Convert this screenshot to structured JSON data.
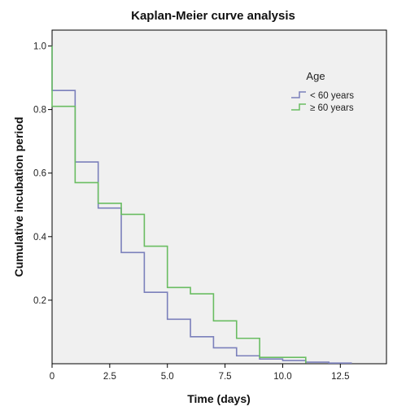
{
  "chart_data": {
    "type": "line",
    "step": true,
    "title": "Kaplan-Meier curve analysis",
    "xlabel": "Time (days)",
    "ylabel": "Cumulative incubation period",
    "xlim": [
      0,
      14.5
    ],
    "ylim": [
      0,
      1.05
    ],
    "x_ticks": [
      0,
      2.5,
      5.0,
      7.5,
      10.0,
      12.5
    ],
    "x_tick_labels": [
      "0",
      "2.5",
      "5.0",
      "7.5",
      "10.0",
      "12.5"
    ],
    "y_ticks": [
      0.2,
      0.4,
      0.6,
      0.8,
      1.0
    ],
    "y_tick_labels": [
      "0.2",
      "0.4",
      "0.6",
      "0.8",
      "1.0"
    ],
    "grid": false,
    "legend": {
      "title": "Age",
      "position": "top-right",
      "entries": [
        "< 60 years",
        "≥ 60 years"
      ]
    },
    "series": [
      {
        "name": "< 60 years",
        "color": "#7b80bb",
        "x": [
          0,
          1,
          2,
          3,
          4,
          5,
          6,
          7,
          8,
          9,
          10,
          11,
          12,
          13
        ],
        "y": [
          0.86,
          0.635,
          0.49,
          0.35,
          0.225,
          0.14,
          0.085,
          0.05,
          0.025,
          0.015,
          0.01,
          0.005,
          0.002,
          0.002
        ]
      },
      {
        "name": "≥ 60 years",
        "color": "#6abd62",
        "x": [
          0,
          1,
          2,
          3,
          4,
          5,
          6,
          7,
          8,
          9,
          10,
          11
        ],
        "y": [
          0.81,
          0.57,
          0.505,
          0.47,
          0.37,
          0.24,
          0.22,
          0.135,
          0.08,
          0.02,
          0.02,
          0.002
        ]
      }
    ]
  }
}
